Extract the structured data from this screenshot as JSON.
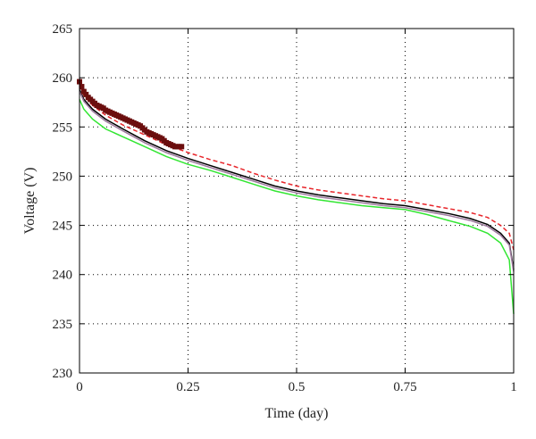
{
  "chart_data": {
    "type": "line",
    "xlabel": "Time (day)",
    "ylabel": "Voltage (V)",
    "xlim": [
      0,
      1
    ],
    "ylim": [
      230,
      265
    ],
    "grid": true,
    "x_ticks": [
      0,
      0.25,
      0.5,
      0.75,
      1
    ],
    "x_tick_labels": [
      "0",
      "0.25",
      "0.5",
      "0.75",
      "1"
    ],
    "y_ticks": [
      230,
      235,
      240,
      245,
      250,
      255,
      260,
      265
    ],
    "y_tick_labels": [
      "230",
      "235",
      "240",
      "245",
      "250",
      "255",
      "260",
      "265"
    ],
    "series": [
      {
        "style": "dashed",
        "color": "#e8262b",
        "x": [
          0,
          0.01,
          0.03,
          0.06,
          0.1,
          0.15,
          0.2,
          0.25,
          0.3,
          0.35,
          0.4,
          0.45,
          0.5,
          0.55,
          0.6,
          0.65,
          0.7,
          0.75,
          0.8,
          0.85,
          0.9,
          0.94,
          0.97,
          0.99,
          1.0
        ],
        "y": [
          259.2,
          258.2,
          257.2,
          256.2,
          255.2,
          254.2,
          253.2,
          252.4,
          251.7,
          251.1,
          250.3,
          249.6,
          249.0,
          248.6,
          248.3,
          248.0,
          247.7,
          247.5,
          247.1,
          246.7,
          246.3,
          245.8,
          245.0,
          244.2,
          242.5
        ]
      },
      {
        "style": "solid",
        "color": "#000000",
        "x": [
          0,
          0.01,
          0.03,
          0.06,
          0.1,
          0.15,
          0.2,
          0.25,
          0.3,
          0.35,
          0.4,
          0.45,
          0.5,
          0.55,
          0.6,
          0.65,
          0.7,
          0.75,
          0.8,
          0.85,
          0.9,
          0.94,
          0.97,
          0.99,
          1.0
        ],
        "y": [
          258.8,
          257.8,
          256.8,
          255.8,
          254.8,
          253.6,
          252.6,
          251.8,
          251.1,
          250.4,
          249.7,
          249.0,
          248.5,
          248.1,
          247.8,
          247.5,
          247.2,
          247.0,
          246.6,
          246.2,
          245.7,
          245.1,
          244.2,
          243.2,
          240.5
        ]
      },
      {
        "style": "solid",
        "color": "#9e7a9e",
        "x": [
          0,
          0.01,
          0.03,
          0.06,
          0.1,
          0.15,
          0.2,
          0.25,
          0.3,
          0.35,
          0.4,
          0.45,
          0.5,
          0.55,
          0.6,
          0.65,
          0.7,
          0.75,
          0.8,
          0.85,
          0.9,
          0.94,
          0.97,
          0.99,
          1.0
        ],
        "y": [
          258.6,
          257.6,
          256.6,
          255.6,
          254.6,
          253.4,
          252.4,
          251.6,
          250.9,
          250.2,
          249.5,
          248.8,
          248.3,
          247.9,
          247.6,
          247.3,
          247.0,
          246.8,
          246.4,
          246.0,
          245.5,
          244.9,
          244.0,
          243.0,
          240.3
        ]
      },
      {
        "style": "solid",
        "color": "#33e633",
        "x": [
          0,
          0.01,
          0.03,
          0.06,
          0.1,
          0.15,
          0.2,
          0.25,
          0.3,
          0.35,
          0.4,
          0.45,
          0.5,
          0.55,
          0.6,
          0.65,
          0.7,
          0.75,
          0.8,
          0.85,
          0.9,
          0.94,
          0.97,
          0.99,
          1.0
        ],
        "y": [
          257.8,
          256.8,
          255.8,
          254.8,
          254.0,
          253.0,
          252.0,
          251.2,
          250.6,
          249.9,
          249.2,
          248.5,
          248.0,
          247.6,
          247.3,
          247.0,
          246.8,
          246.6,
          246.1,
          245.5,
          244.9,
          244.2,
          243.2,
          241.5,
          236.0
        ]
      },
      {
        "style": "markers",
        "color": "#6b0e0e",
        "x": [
          0.0,
          0.005,
          0.01,
          0.015,
          0.02,
          0.025,
          0.03,
          0.035,
          0.04,
          0.045,
          0.05,
          0.055,
          0.06,
          0.065,
          0.07,
          0.075,
          0.08,
          0.085,
          0.09,
          0.095,
          0.1,
          0.105,
          0.11,
          0.115,
          0.12,
          0.125,
          0.13,
          0.135,
          0.14,
          0.145,
          0.15,
          0.155,
          0.16,
          0.165,
          0.17,
          0.175,
          0.18,
          0.185,
          0.19,
          0.195,
          0.2,
          0.205,
          0.21,
          0.215,
          0.22,
          0.225,
          0.23,
          0.235
        ],
        "y": [
          259.6,
          259.1,
          258.6,
          258.3,
          258.0,
          257.8,
          257.6,
          257.4,
          257.2,
          257.1,
          257.0,
          256.9,
          256.7,
          256.6,
          256.5,
          256.4,
          256.3,
          256.2,
          256.1,
          256.0,
          255.9,
          255.8,
          255.7,
          255.6,
          255.5,
          255.4,
          255.3,
          255.2,
          255.1,
          254.9,
          254.7,
          254.5,
          254.4,
          254.3,
          254.2,
          254.1,
          254.0,
          253.9,
          253.8,
          253.6,
          253.4,
          253.3,
          253.2,
          253.1,
          253.0,
          253.0,
          253.0,
          253.0
        ]
      }
    ]
  }
}
